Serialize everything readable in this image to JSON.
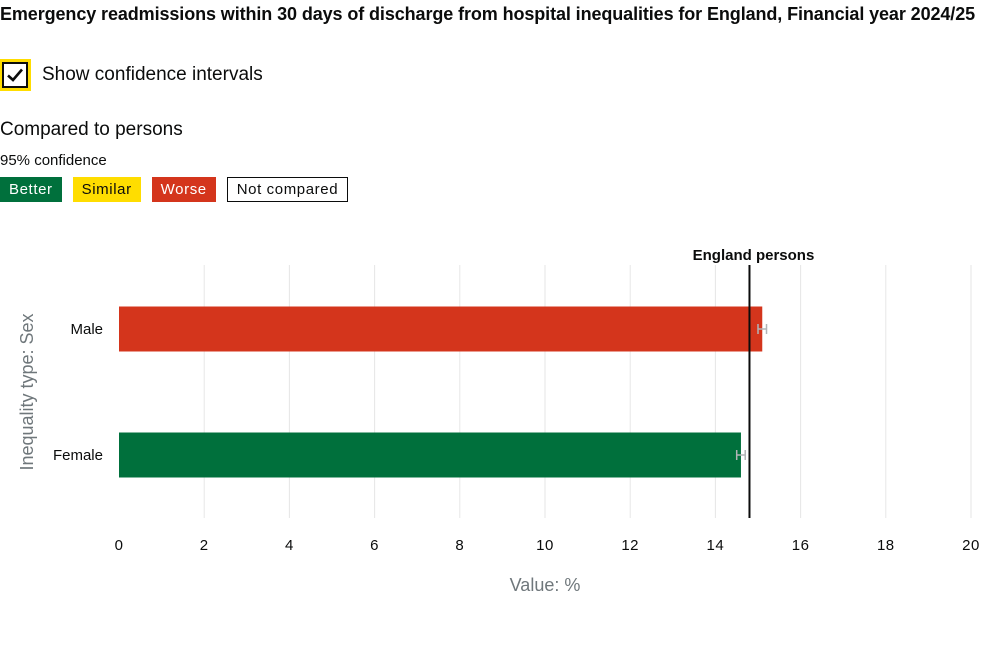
{
  "header": {
    "title": "Emergency readmissions within 30 days of discharge from hospital inequalities for England, Financial year 2024/25"
  },
  "controls": {
    "show_ci_label": "Show confidence intervals",
    "show_ci_checked": true
  },
  "comparison": {
    "compared_to": "Compared to persons",
    "confidence": "95% confidence",
    "legend": [
      {
        "label": "Better",
        "color": "#00703c"
      },
      {
        "label": "Similar",
        "color": "#ffdd00"
      },
      {
        "label": "Worse",
        "color": "#d4351c"
      },
      {
        "label": "Not compared",
        "color": "#ffffff"
      }
    ]
  },
  "chart_data": {
    "type": "bar",
    "orientation": "horizontal",
    "categories": [
      "Male",
      "Female"
    ],
    "values": [
      15.1,
      14.6
    ],
    "ci": [
      [
        15.0,
        15.2
      ],
      [
        14.5,
        14.7
      ]
    ],
    "bar_colors": [
      "#d4351c",
      "#00703c"
    ],
    "benchmark": {
      "label": "England persons",
      "value": 14.8
    },
    "xlabel": "Value: %",
    "ylabel": "Inequality type: Sex",
    "xlim": [
      0,
      20
    ],
    "xticks": [
      0,
      2,
      4,
      6,
      8,
      10,
      12,
      14,
      16,
      18,
      20
    ],
    "grid": true
  }
}
